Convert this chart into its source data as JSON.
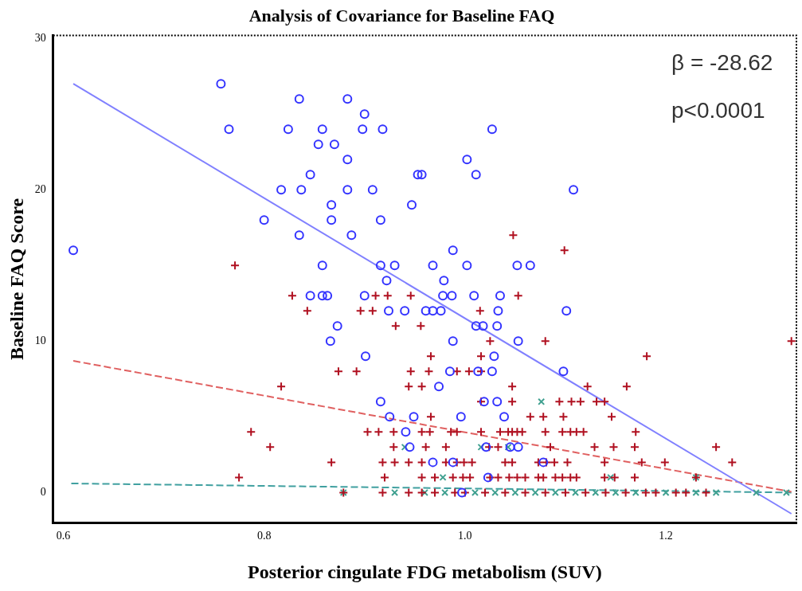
{
  "chart_data": {
    "type": "scatter",
    "title": "Analysis of Covariance for Baseline FAQ",
    "xlabel": "Posterior cingulate FDG metabolism (SUV)",
    "ylabel": "Baseline FAQ Score",
    "xlim": [
      0.59,
      1.33
    ],
    "ylim": [
      -2,
      30.2
    ],
    "xticks": [
      0.6,
      0.8,
      {
        "value": 1,
        "label": "1.0"
      },
      1.2
    ],
    "yticks": [
      0,
      10,
      20,
      30
    ],
    "grid": false,
    "legend": false,
    "annotations": [
      "β = -28.62",
      "p<0.0001"
    ],
    "series": [
      {
        "marker": "circle",
        "color": "#3333ff",
        "x": [
          0.61,
          0.757,
          0.765,
          0.8,
          0.835,
          0.817,
          0.837,
          0.824,
          0.835,
          0.858,
          0.854,
          0.87,
          0.846,
          0.867,
          0.867,
          0.883,
          0.9,
          0.898,
          0.918,
          0.883,
          0.883,
          0.908,
          0.916,
          0.887,
          0.947,
          0.953,
          0.858,
          0.916,
          0.93,
          0.922,
          1.027,
          1.002,
          1.011,
          0.957,
          1.108,
          0.988,
          0.968,
          1.002,
          1.052,
          1.065,
          0.979,
          0.846,
          0.858,
          0.863,
          0.9,
          0.924,
          0.94,
          0.873,
          0.866,
          0.901,
          0.916,
          0.925,
          0.949,
          0.941,
          0.945,
          0.978,
          0.987,
          1.009,
          1.035,
          0.961,
          0.968,
          0.976,
          1.033,
          1.101,
          1.011,
          1.018,
          1.032,
          0.988,
          1.053,
          1.029,
          0.985,
          1.013,
          1.027,
          1.098,
          0.974,
          1.019,
          1.032,
          0.996,
          1.039,
          1.021,
          1.045,
          1.053,
          0.968,
          0.988,
          1.078,
          1.023,
          0.997
        ],
        "values": [
          16,
          27,
          24,
          18,
          17,
          20,
          20,
          24,
          26,
          24,
          23,
          23,
          21,
          19,
          18,
          26,
          25,
          24,
          24,
          22,
          20,
          20,
          18,
          17,
          19,
          21,
          15,
          15,
          15,
          14,
          24,
          22,
          21,
          21,
          20,
          16,
          15,
          15,
          15,
          15,
          14,
          13,
          13,
          13,
          13,
          12,
          12,
          11,
          10,
          9,
          6,
          5,
          5,
          4,
          3,
          13,
          13,
          13,
          13,
          12,
          12,
          12,
          12,
          12,
          11,
          11,
          11,
          10,
          10,
          9,
          8,
          8,
          8,
          8,
          7,
          6,
          6,
          5,
          5,
          3,
          3,
          3,
          2,
          2,
          2,
          1,
          0
        ]
      },
      {
        "marker": "cross",
        "color": "#b01020",
        "x": [
          0.771,
          0.828,
          0.911,
          0.923,
          0.946,
          0.843,
          0.896,
          0.908,
          0.931,
          0.874,
          0.892,
          0.946,
          0.817,
          0.944,
          0.787,
          0.806,
          0.867,
          0.775,
          0.903,
          0.914,
          0.929,
          0.929,
          0.918,
          0.93,
          0.944,
          0.92,
          0.879,
          0.918,
          0.944,
          1.048,
          1.099,
          1.053,
          1.015,
          0.956,
          1.025,
          1.08,
          1.325,
          0.966,
          1.016,
          1.181,
          0.964,
          0.992,
          1.004,
          1.016,
          0.957,
          1.047,
          1.122,
          1.161,
          1.016,
          1.047,
          1.094,
          1.106,
          1.115,
          1.131,
          1.139,
          0.966,
          1.065,
          1.078,
          1.098,
          1.146,
          0.957,
          0.965,
          0.986,
          0.992,
          1.016,
          1.035,
          1.043,
          1.047,
          1.052,
          1.057,
          1.08,
          1.097,
          1.105,
          1.111,
          1.118,
          1.17,
          0.961,
          0.981,
          1.024,
          1.033,
          1.085,
          1.129,
          1.148,
          1.169,
          1.25,
          0.957,
          0.981,
          0.992,
          0.999,
          1.007,
          1.04,
          1.047,
          1.073,
          1.081,
          1.089,
          1.102,
          1.139,
          1.176,
          1.199,
          1.266,
          0.957,
          0.97,
          0.988,
          0.998,
          1.005,
          1.025,
          1.033,
          1.044,
          1.052,
          1.06,
          1.073,
          1.078,
          1.09,
          1.097,
          1.105,
          1.111,
          1.139,
          1.149,
          1.169,
          1.23,
          0.957,
          0.97,
          0.99,
          1.0,
          1.02,
          1.04,
          1.06,
          1.08,
          1.1,
          1.12,
          1.14,
          1.16,
          1.18,
          1.19,
          1.21,
          1.22,
          1.24
        ],
        "values": [
          15,
          13,
          13,
          13,
          13,
          12,
          12,
          12,
          11,
          8,
          8,
          8,
          7,
          7,
          4,
          3,
          2,
          1,
          4,
          4,
          4,
          3,
          2,
          2,
          2,
          1,
          0,
          0,
          0,
          17,
          16,
          13,
          12,
          11,
          10,
          10,
          10,
          9,
          9,
          9,
          8,
          8,
          8,
          8,
          7,
          7,
          7,
          7,
          6,
          6,
          6,
          6,
          6,
          6,
          6,
          5,
          5,
          5,
          5,
          5,
          4,
          4,
          4,
          4,
          4,
          4,
          4,
          4,
          4,
          4,
          4,
          4,
          4,
          4,
          4,
          4,
          3,
          3,
          3,
          3,
          3,
          3,
          3,
          3,
          3,
          2,
          2,
          2,
          2,
          2,
          2,
          2,
          2,
          2,
          2,
          2,
          2,
          2,
          2,
          2,
          1,
          1,
          1,
          1,
          1,
          1,
          1,
          1,
          1,
          1,
          1,
          1,
          1,
          1,
          1,
          1,
          1,
          1,
          1,
          1,
          0,
          0,
          0,
          0,
          0,
          0,
          0,
          0,
          0,
          0,
          0,
          0,
          0,
          0,
          0,
          0,
          0
        ]
      },
      {
        "marker": "x",
        "color": "#40a090",
        "x": [
          0.879,
          0.93,
          0.94,
          1.076,
          1.016,
          1.043,
          0.978,
          1.145,
          1.23,
          0.96,
          0.98,
          1.01,
          1.03,
          1.05,
          1.07,
          1.09,
          1.11,
          1.13,
          1.15,
          1.17,
          1.2,
          1.23,
          1.25,
          1.29,
          1.32
        ],
        "values": [
          0,
          0,
          3,
          6,
          3,
          3,
          1,
          1,
          1,
          0,
          0,
          0,
          0,
          0,
          0,
          0,
          0,
          0,
          0,
          0,
          0,
          0,
          0,
          0,
          0
        ]
      },
      {
        "type": "line",
        "line_style": "solid",
        "color": "#8080ff",
        "x": [
          0.61,
          1.325
        ],
        "values": [
          27,
          -1.4
        ]
      },
      {
        "type": "line",
        "line_style": "dashed",
        "color": "#e06060",
        "x": [
          0.61,
          1.325
        ],
        "values": [
          8.7,
          0.05
        ]
      },
      {
        "type": "line",
        "line_style": "dashed",
        "color": "#40a0a0",
        "x": [
          0.608,
          1.325
        ],
        "values": [
          0.6,
          0
        ]
      }
    ]
  }
}
